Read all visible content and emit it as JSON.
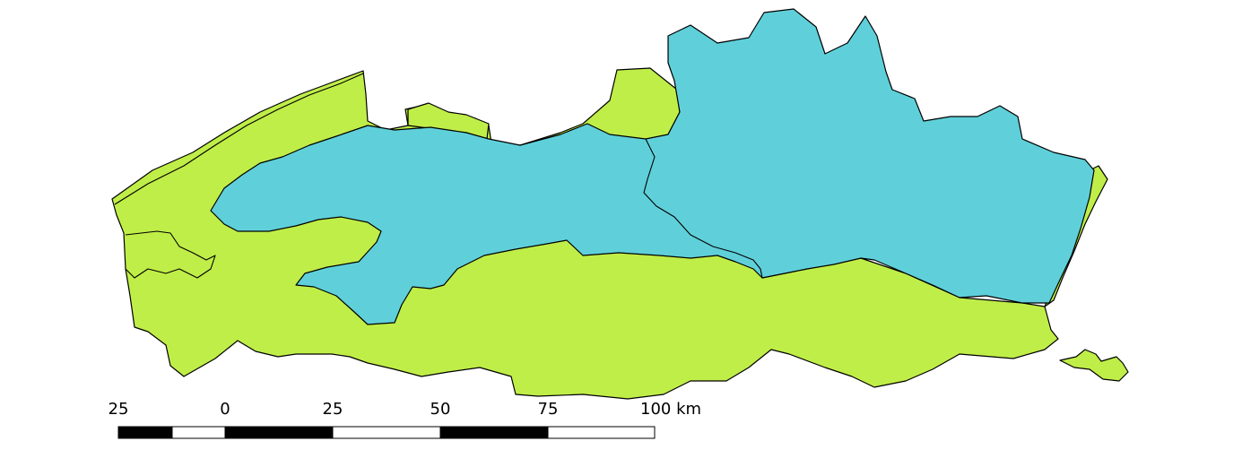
{
  "map": {
    "colors": {
      "zone_a": "#c0ee48",
      "zone_b": "#5fd0da",
      "outline": "#000000",
      "background": "#ffffff"
    }
  },
  "scale_bar": {
    "unit": "km",
    "ticks": [
      {
        "label": "25"
      },
      {
        "label": "0"
      },
      {
        "label": "25"
      },
      {
        "label": "50"
      },
      {
        "label": "75"
      },
      {
        "label": "100 km"
      }
    ],
    "segment_fill": [
      "black",
      "white",
      "black",
      "white",
      "black",
      "white",
      "white"
    ]
  }
}
